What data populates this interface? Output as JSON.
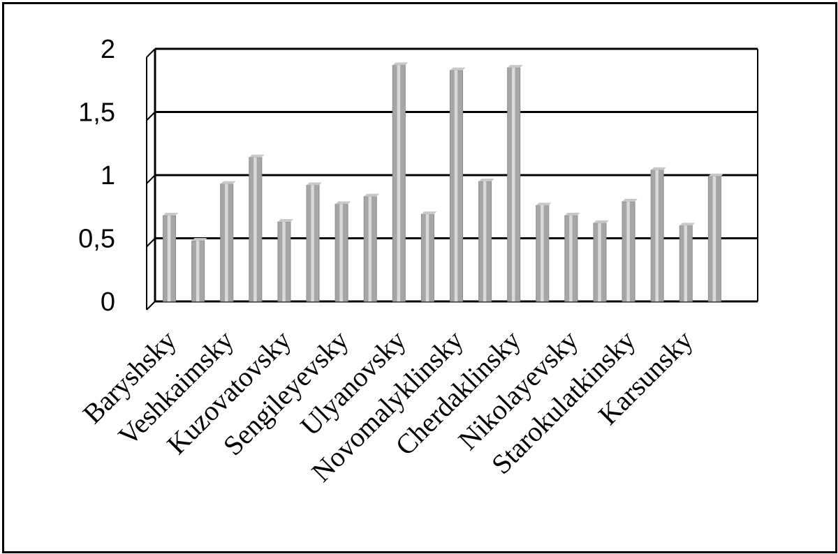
{
  "chart_data": {
    "type": "bar",
    "title": "",
    "xlabel": "",
    "ylabel": "",
    "ylim": [
      0,
      2
    ],
    "yticks": [
      0,
      0.5,
      1,
      1.5,
      2
    ],
    "ytick_labels": [
      "0",
      "0,5",
      "1",
      "1,5",
      "2"
    ],
    "grid": true,
    "legend": "none",
    "bar_color": "#a6a6a6",
    "categories": [
      "Baryshsky",
      "",
      "Veshkaimsky",
      "",
      "Kuzovatovsky",
      "",
      "Sengileyevsky",
      "",
      "Ulyanovsky",
      "",
      "Novomalyklinsky",
      "",
      "Cherdaklinsky",
      "",
      "Nikolayevsky",
      "",
      "Starokulatkinsky",
      "",
      "Karsunsky",
      "",
      ""
    ],
    "values": [
      0.68,
      0.48,
      0.93,
      1.14,
      0.63,
      0.92,
      0.77,
      0.83,
      1.87,
      0.69,
      1.83,
      0.95,
      1.85,
      0.76,
      0.68,
      0.62,
      0.79,
      1.04,
      0.6,
      0.99,
      0.0
    ],
    "series": [
      {
        "values": [
          0.68,
          0.48,
          0.93,
          1.14,
          0.63,
          0.92,
          0.77,
          0.83,
          1.87,
          0.69,
          1.83,
          0.95,
          1.85,
          0.76,
          0.68,
          0.62,
          0.79,
          1.04,
          0.6,
          0.99,
          0.0
        ]
      }
    ]
  }
}
